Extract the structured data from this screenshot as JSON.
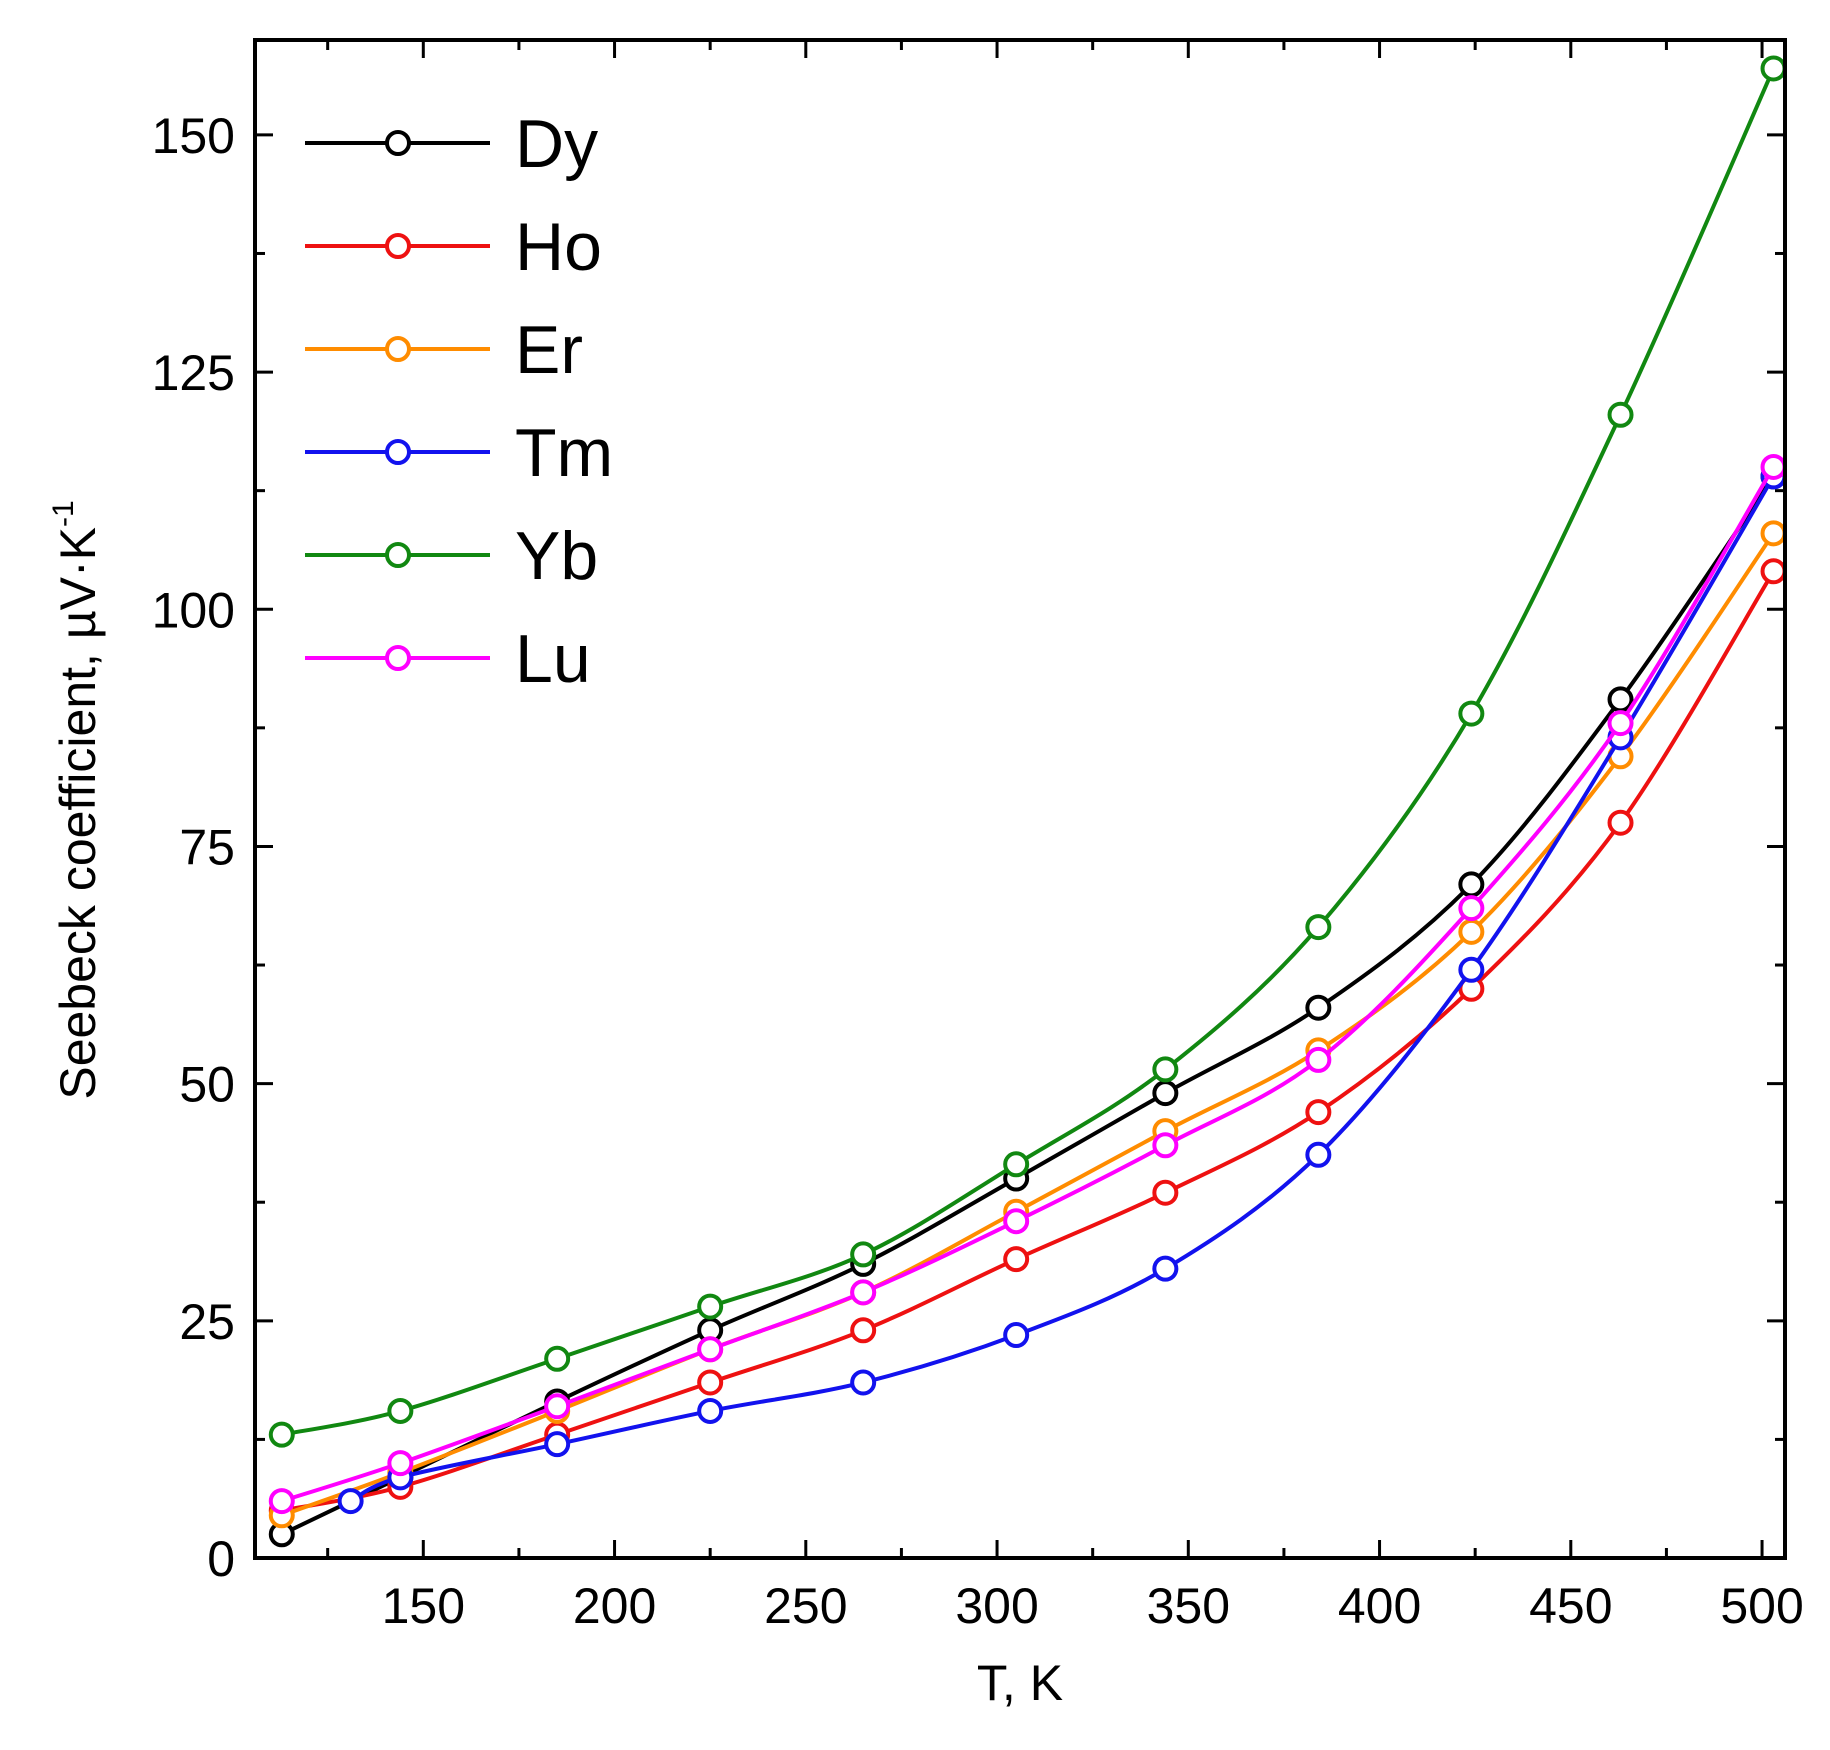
{
  "chart_data": {
    "type": "line",
    "title": "",
    "xlabel": "T, K",
    "ylabel_main": "Seebeck coefficient, µV·K",
    "ylabel_sup": "-1",
    "xlim": [
      106,
      506
    ],
    "ylim": [
      0,
      160
    ],
    "xticks": [
      150,
      200,
      250,
      300,
      350,
      400,
      450,
      500
    ],
    "xticks_minor": [
      125,
      175,
      225,
      275,
      325,
      375,
      425,
      475
    ],
    "yticks": [
      0,
      25,
      50,
      75,
      100,
      125,
      150
    ],
    "yticks_minor": [
      12.5,
      37.5,
      62.5,
      87.5,
      112.5,
      137.5
    ],
    "grid": false,
    "legend_position": "top-left",
    "series": [
      {
        "name": "Dy",
        "color": "#000000",
        "x": [
          113,
          144,
          185,
          225,
          265,
          305,
          344,
          384,
          424,
          463,
          503
        ],
        "y": [
          2.5,
          8.5,
          16.5,
          24,
          31,
          40,
          49,
          58,
          71,
          90.5,
          114
        ]
      },
      {
        "name": "Ho",
        "color": "#ee1111",
        "x": [
          113,
          144,
          185,
          225,
          265,
          305,
          344,
          384,
          424,
          463,
          503
        ],
        "y": [
          5,
          7.5,
          13,
          18.5,
          24,
          31.5,
          38.5,
          47,
          60,
          77.5,
          104
        ]
      },
      {
        "name": "Er",
        "color": "#ff8c00",
        "x": [
          113,
          144,
          185,
          225,
          265,
          305,
          344,
          384,
          424,
          463,
          503
        ],
        "y": [
          4.5,
          9,
          15.5,
          22,
          28,
          36.5,
          45,
          53.5,
          66,
          84.5,
          108
        ]
      },
      {
        "name": "Tm",
        "color": "#1212ee",
        "x": [
          131,
          144,
          185,
          225,
          265,
          305,
          344,
          384,
          424,
          463,
          503
        ],
        "y": [
          6,
          8.5,
          12,
          15.5,
          18.5,
          23.5,
          30.5,
          42.5,
          62,
          86.5,
          114
        ]
      },
      {
        "name": "Yb",
        "color": "#118811",
        "x": [
          113,
          144,
          185,
          225,
          265,
          305,
          344,
          384,
          424,
          463,
          503
        ],
        "y": [
          13,
          15.5,
          21,
          26.5,
          32,
          41.5,
          51.5,
          66.5,
          89,
          120.5,
          157
        ]
      },
      {
        "name": "Lu",
        "color": "#ff00ff",
        "x": [
          113,
          144,
          185,
          225,
          265,
          305,
          344,
          384,
          424,
          463,
          503
        ],
        "y": [
          6,
          10,
          16,
          22,
          28,
          35.5,
          43.5,
          52.5,
          68.5,
          88,
          115
        ]
      }
    ]
  }
}
